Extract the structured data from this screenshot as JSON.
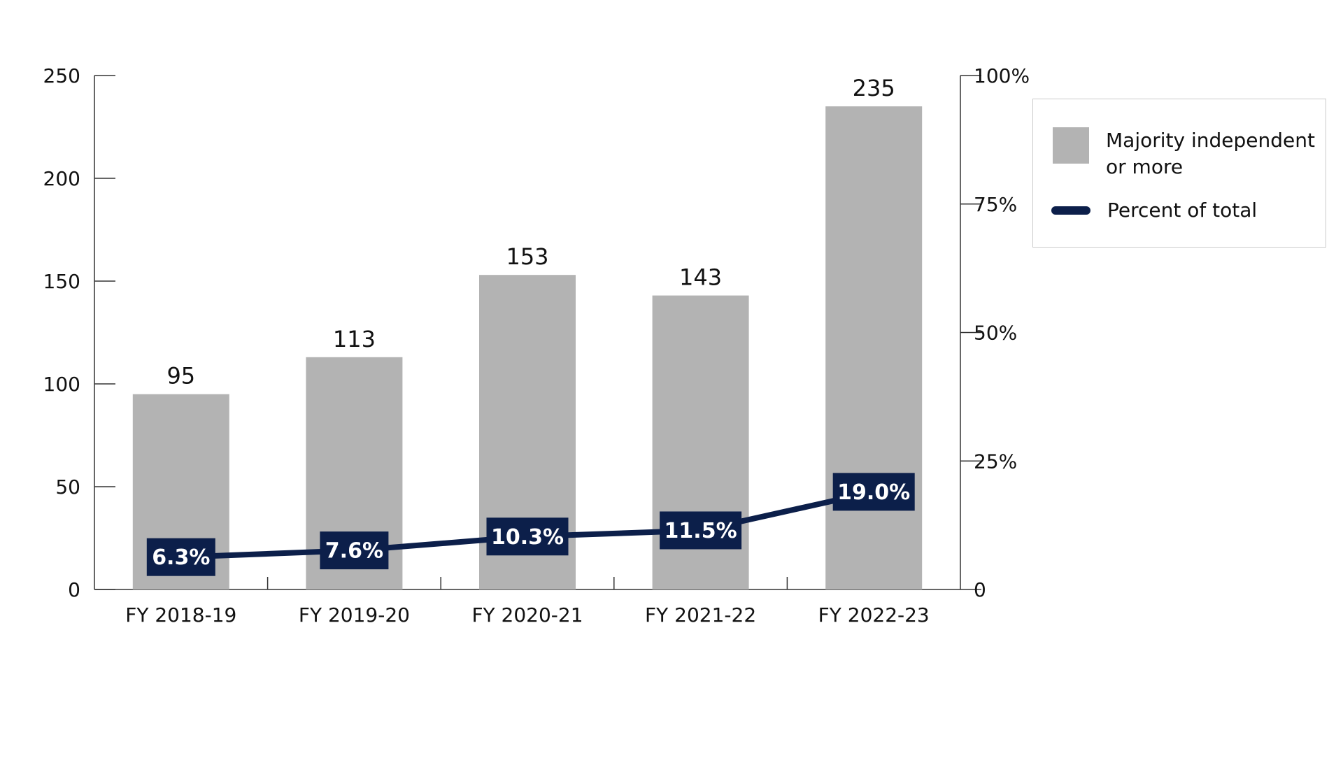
{
  "chart_data": {
    "type": "bar_line",
    "categories": [
      "FY 2018-19",
      "FY 2019-20",
      "FY 2020-21",
      "FY 2021-22",
      "FY 2022-23"
    ],
    "series": [
      {
        "name": "Majority independent or more",
        "type": "bar",
        "color": "#b3b3b3",
        "values": [
          95,
          113,
          153,
          143,
          235
        ]
      },
      {
        "name": "Percent of total",
        "type": "line",
        "axis": "y2",
        "color": "#0c1f4a",
        "values": [
          6.3,
          7.6,
          10.3,
          11.5,
          19.0
        ],
        "value_labels": [
          "6.3%",
          "7.6%",
          "10.3%",
          "11.5%",
          "19.0%"
        ]
      }
    ],
    "ylim": [
      0,
      250
    ],
    "yticks": [
      0,
      50,
      100,
      150,
      200,
      250
    ],
    "y2lim": [
      0,
      100
    ],
    "y2ticks": [
      0,
      {
        "value": 25,
        "label": "25%"
      },
      {
        "value": 50,
        "label": "50%"
      },
      {
        "value": 75,
        "label": "75%"
      },
      {
        "value": 100,
        "label": "100%"
      }
    ],
    "legend": "upper right"
  }
}
